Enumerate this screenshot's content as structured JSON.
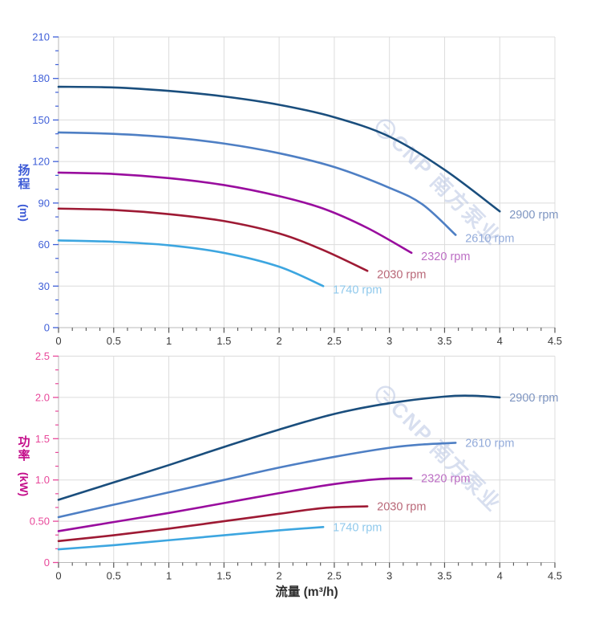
{
  "figure": {
    "watermark_text": "CNP 南方泵业",
    "watermark_color": "#b9c5e3"
  },
  "style": {
    "grid_color": "#dcdcdc",
    "axis_line_color": "#b8b8b8",
    "x_tick_color": "#555555",
    "x_label_color": "#3a3a3a",
    "curve_width": 2.6
  },
  "chart_data": [
    {
      "type": "line",
      "title": "",
      "ylabel_cn": "扬程",
      "ylabel_unit": "(m)",
      "xlabel": "",
      "xlim": [
        0,
        4.5
      ],
      "ylim": [
        0,
        210
      ],
      "grid": true,
      "x_tick_step": 0.5,
      "y_tick_step": 30,
      "x_minor_per_major": 4,
      "y_minor_per_major": 3,
      "x_major_ticks": [
        "0",
        "0.5",
        "1",
        "1.5",
        "2",
        "2.5",
        "3",
        "3.5",
        "4",
        "4.5"
      ],
      "y_major_ticks": [
        "0",
        "30",
        "60",
        "90",
        "120",
        "150",
        "180",
        "210"
      ],
      "tick_label_color": "#3f5fd8",
      "title_color": "#3c5ad6",
      "legend_position": "right-of-curve-end",
      "series": [
        {
          "name": "2900 rpm",
          "label": "2900 rpm",
          "color": "#1a4e7d",
          "label_color": "#7e95c1",
          "points": [
            [
              0,
              174
            ],
            [
              0.5,
              173.5
            ],
            [
              1,
              171
            ],
            [
              1.5,
              167
            ],
            [
              2,
              161
            ],
            [
              2.5,
              152
            ],
            [
              3,
              138
            ],
            [
              3.5,
              114
            ],
            [
              4,
              84
            ]
          ]
        },
        {
          "name": "2610 rpm",
          "label": "2610 rpm",
          "color": "#4e7fc4",
          "label_color": "#93abda",
          "points": [
            [
              0,
              141
            ],
            [
              0.5,
              140
            ],
            [
              1,
              137.5
            ],
            [
              1.5,
              133
            ],
            [
              2,
              126
            ],
            [
              2.5,
              116
            ],
            [
              3,
              101
            ],
            [
              3.3,
              89
            ],
            [
              3.6,
              67
            ]
          ]
        },
        {
          "name": "2320 rpm",
          "label": "2320 rpm",
          "color": "#990d9e",
          "label_color": "#bc6ec4",
          "points": [
            [
              0,
              112
            ],
            [
              0.5,
              111
            ],
            [
              1,
              108
            ],
            [
              1.5,
              103
            ],
            [
              2,
              95
            ],
            [
              2.4,
              86
            ],
            [
              2.8,
              72
            ],
            [
              3.2,
              54
            ]
          ]
        },
        {
          "name": "2030 rpm",
          "label": "2030 rpm",
          "color": "#9e1a34",
          "label_color": "#b96878",
          "points": [
            [
              0,
              86
            ],
            [
              0.5,
              85
            ],
            [
              1,
              82
            ],
            [
              1.5,
              77
            ],
            [
              2,
              68
            ],
            [
              2.4,
              56
            ],
            [
              2.8,
              41
            ]
          ]
        },
        {
          "name": "1740 rpm",
          "label": "1740 rpm",
          "color": "#3da6e0",
          "label_color": "#90c9ec",
          "points": [
            [
              0,
              63
            ],
            [
              0.5,
              62
            ],
            [
              1,
              59.5
            ],
            [
              1.5,
              54
            ],
            [
              2,
              44
            ],
            [
              2.4,
              30
            ]
          ]
        }
      ]
    },
    {
      "type": "line",
      "title": "",
      "ylabel_cn": "功率",
      "ylabel_unit": "(kW)",
      "xlabel": "流量 (m³/h)",
      "xlim": [
        0,
        4.5
      ],
      "ylim": [
        0,
        2.5
      ],
      "grid": true,
      "x_tick_step": 0.5,
      "y_tick_step": 0.5,
      "x_minor_per_major": 4,
      "y_minor_per_major": 3,
      "x_major_ticks": [
        "0",
        "0.5",
        "1",
        "1.5",
        "2",
        "2.5",
        "3",
        "3.5",
        "4",
        "4.5"
      ],
      "y_major_ticks": [
        "0",
        "0.50",
        "1.0",
        "1.5",
        "2.0",
        "2.5"
      ],
      "tick_label_color": "#e8489a",
      "title_color": "#c40d8a",
      "legend_position": "right-of-curve-end",
      "series": [
        {
          "name": "2900 rpm",
          "label": "2900 rpm",
          "color": "#1a4e7d",
          "label_color": "#7e95c1",
          "points": [
            [
              0,
              0.76
            ],
            [
              0.5,
              0.97
            ],
            [
              1,
              1.18
            ],
            [
              1.5,
              1.4
            ],
            [
              2,
              1.61
            ],
            [
              2.5,
              1.8
            ],
            [
              3,
              1.93
            ],
            [
              3.5,
              2.01
            ],
            [
              3.75,
              2.02
            ],
            [
              4,
              2.0
            ]
          ]
        },
        {
          "name": "2610 rpm",
          "label": "2610 rpm",
          "color": "#4e7fc4",
          "label_color": "#93abda",
          "points": [
            [
              0,
              0.55
            ],
            [
              0.5,
              0.7
            ],
            [
              1,
              0.85
            ],
            [
              1.5,
              1.0
            ],
            [
              2,
              1.15
            ],
            [
              2.5,
              1.28
            ],
            [
              3,
              1.39
            ],
            [
              3.3,
              1.43
            ],
            [
              3.6,
              1.45
            ]
          ]
        },
        {
          "name": "2320 rpm",
          "label": "2320 rpm",
          "color": "#990d9e",
          "label_color": "#bc6ec4",
          "points": [
            [
              0,
              0.38
            ],
            [
              0.5,
              0.49
            ],
            [
              1,
              0.6
            ],
            [
              1.5,
              0.72
            ],
            [
              2,
              0.84
            ],
            [
              2.5,
              0.95
            ],
            [
              2.9,
              1.01
            ],
            [
              3.2,
              1.02
            ]
          ]
        },
        {
          "name": "2030 rpm",
          "label": "2030 rpm",
          "color": "#9e1a34",
          "label_color": "#b96878",
          "points": [
            [
              0,
              0.26
            ],
            [
              0.5,
              0.33
            ],
            [
              1,
              0.41
            ],
            [
              1.5,
              0.5
            ],
            [
              2,
              0.59
            ],
            [
              2.4,
              0.66
            ],
            [
              2.8,
              0.68
            ]
          ]
        },
        {
          "name": "1740 rpm",
          "label": "1740 rpm",
          "color": "#3da6e0",
          "label_color": "#90c9ec",
          "points": [
            [
              0,
              0.16
            ],
            [
              0.5,
              0.21
            ],
            [
              1,
              0.27
            ],
            [
              1.5,
              0.33
            ],
            [
              2,
              0.39
            ],
            [
              2.4,
              0.43
            ]
          ]
        }
      ]
    }
  ]
}
